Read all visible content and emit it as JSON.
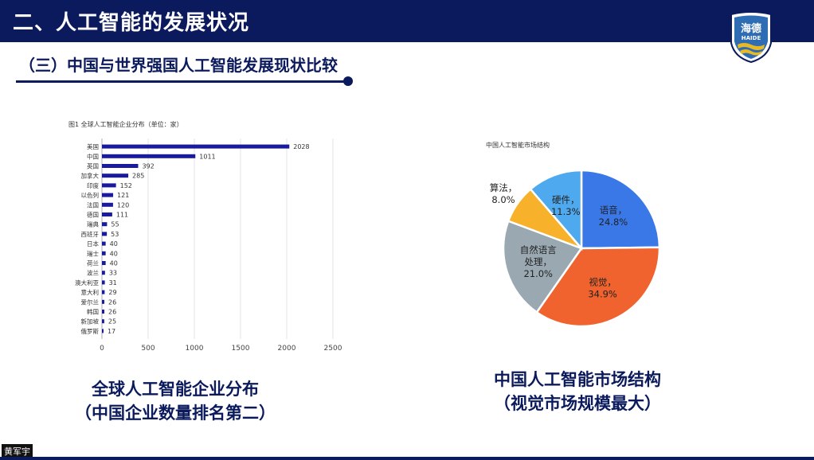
{
  "header": {
    "title": "二、人工智能的发展状况"
  },
  "logo": {
    "text": "海德",
    "subtext": "HAIDE",
    "colors": {
      "primary": "#2e6db4",
      "accent": "#e8b923"
    }
  },
  "subtitle": "（三）中国与世界强国人工智能发展现状比较",
  "bar_caption": {
    "line1": "全球人工智能企业分布",
    "line2": "（中国企业数量排名第二）"
  },
  "pie_caption": {
    "line1": "中国人工智能市场结构",
    "line2": "（视觉市场规模最大）"
  },
  "author_tag": "黄军宇",
  "chart_data": [
    {
      "type": "bar",
      "orientation": "horizontal",
      "title": "图1  全球人工智能企业分布（单位：家）",
      "categories": [
        "美国",
        "中国",
        "英国",
        "加拿大",
        "印度",
        "以色列",
        "法国",
        "德国",
        "瑞典",
        "西班牙",
        "日本",
        "瑞士",
        "荷兰",
        "波兰",
        "澳大利亚",
        "意大利",
        "爱尔兰",
        "韩国",
        "新加坡",
        "俄罗斯"
      ],
      "values": [
        2028,
        1011,
        392,
        285,
        152,
        121,
        120,
        111,
        55,
        53,
        40,
        40,
        40,
        33,
        31,
        29,
        26,
        26,
        25,
        17
      ],
      "xlim": [
        0,
        2500
      ],
      "xticks": [
        "0",
        "500",
        "1000",
        "1500",
        "2000",
        "2500"
      ],
      "grid": true,
      "color": "#1a1a9e"
    },
    {
      "type": "pie",
      "title": "中国人工智能市场结构",
      "slices": [
        {
          "name": "语音",
          "label": "语音，",
          "pct": "24.8%",
          "value": 24.8,
          "color": "#3a78e8"
        },
        {
          "name": "视觉",
          "label": "视觉，",
          "pct": "34.9%",
          "value": 34.9,
          "color": "#f0622e"
        },
        {
          "name": "自然语言处理",
          "label": "自然语言",
          "label2": "处理，",
          "pct": "21.0%",
          "value": 21.0,
          "color": "#9aa8b2"
        },
        {
          "name": "算法",
          "label": "算法，",
          "pct": "8.0%",
          "value": 8.0,
          "color": "#f7b12a"
        },
        {
          "name": "硬件",
          "label": "硬件，",
          "pct": "11.3%",
          "value": 11.3,
          "color": "#4fa9ee"
        }
      ]
    }
  ]
}
